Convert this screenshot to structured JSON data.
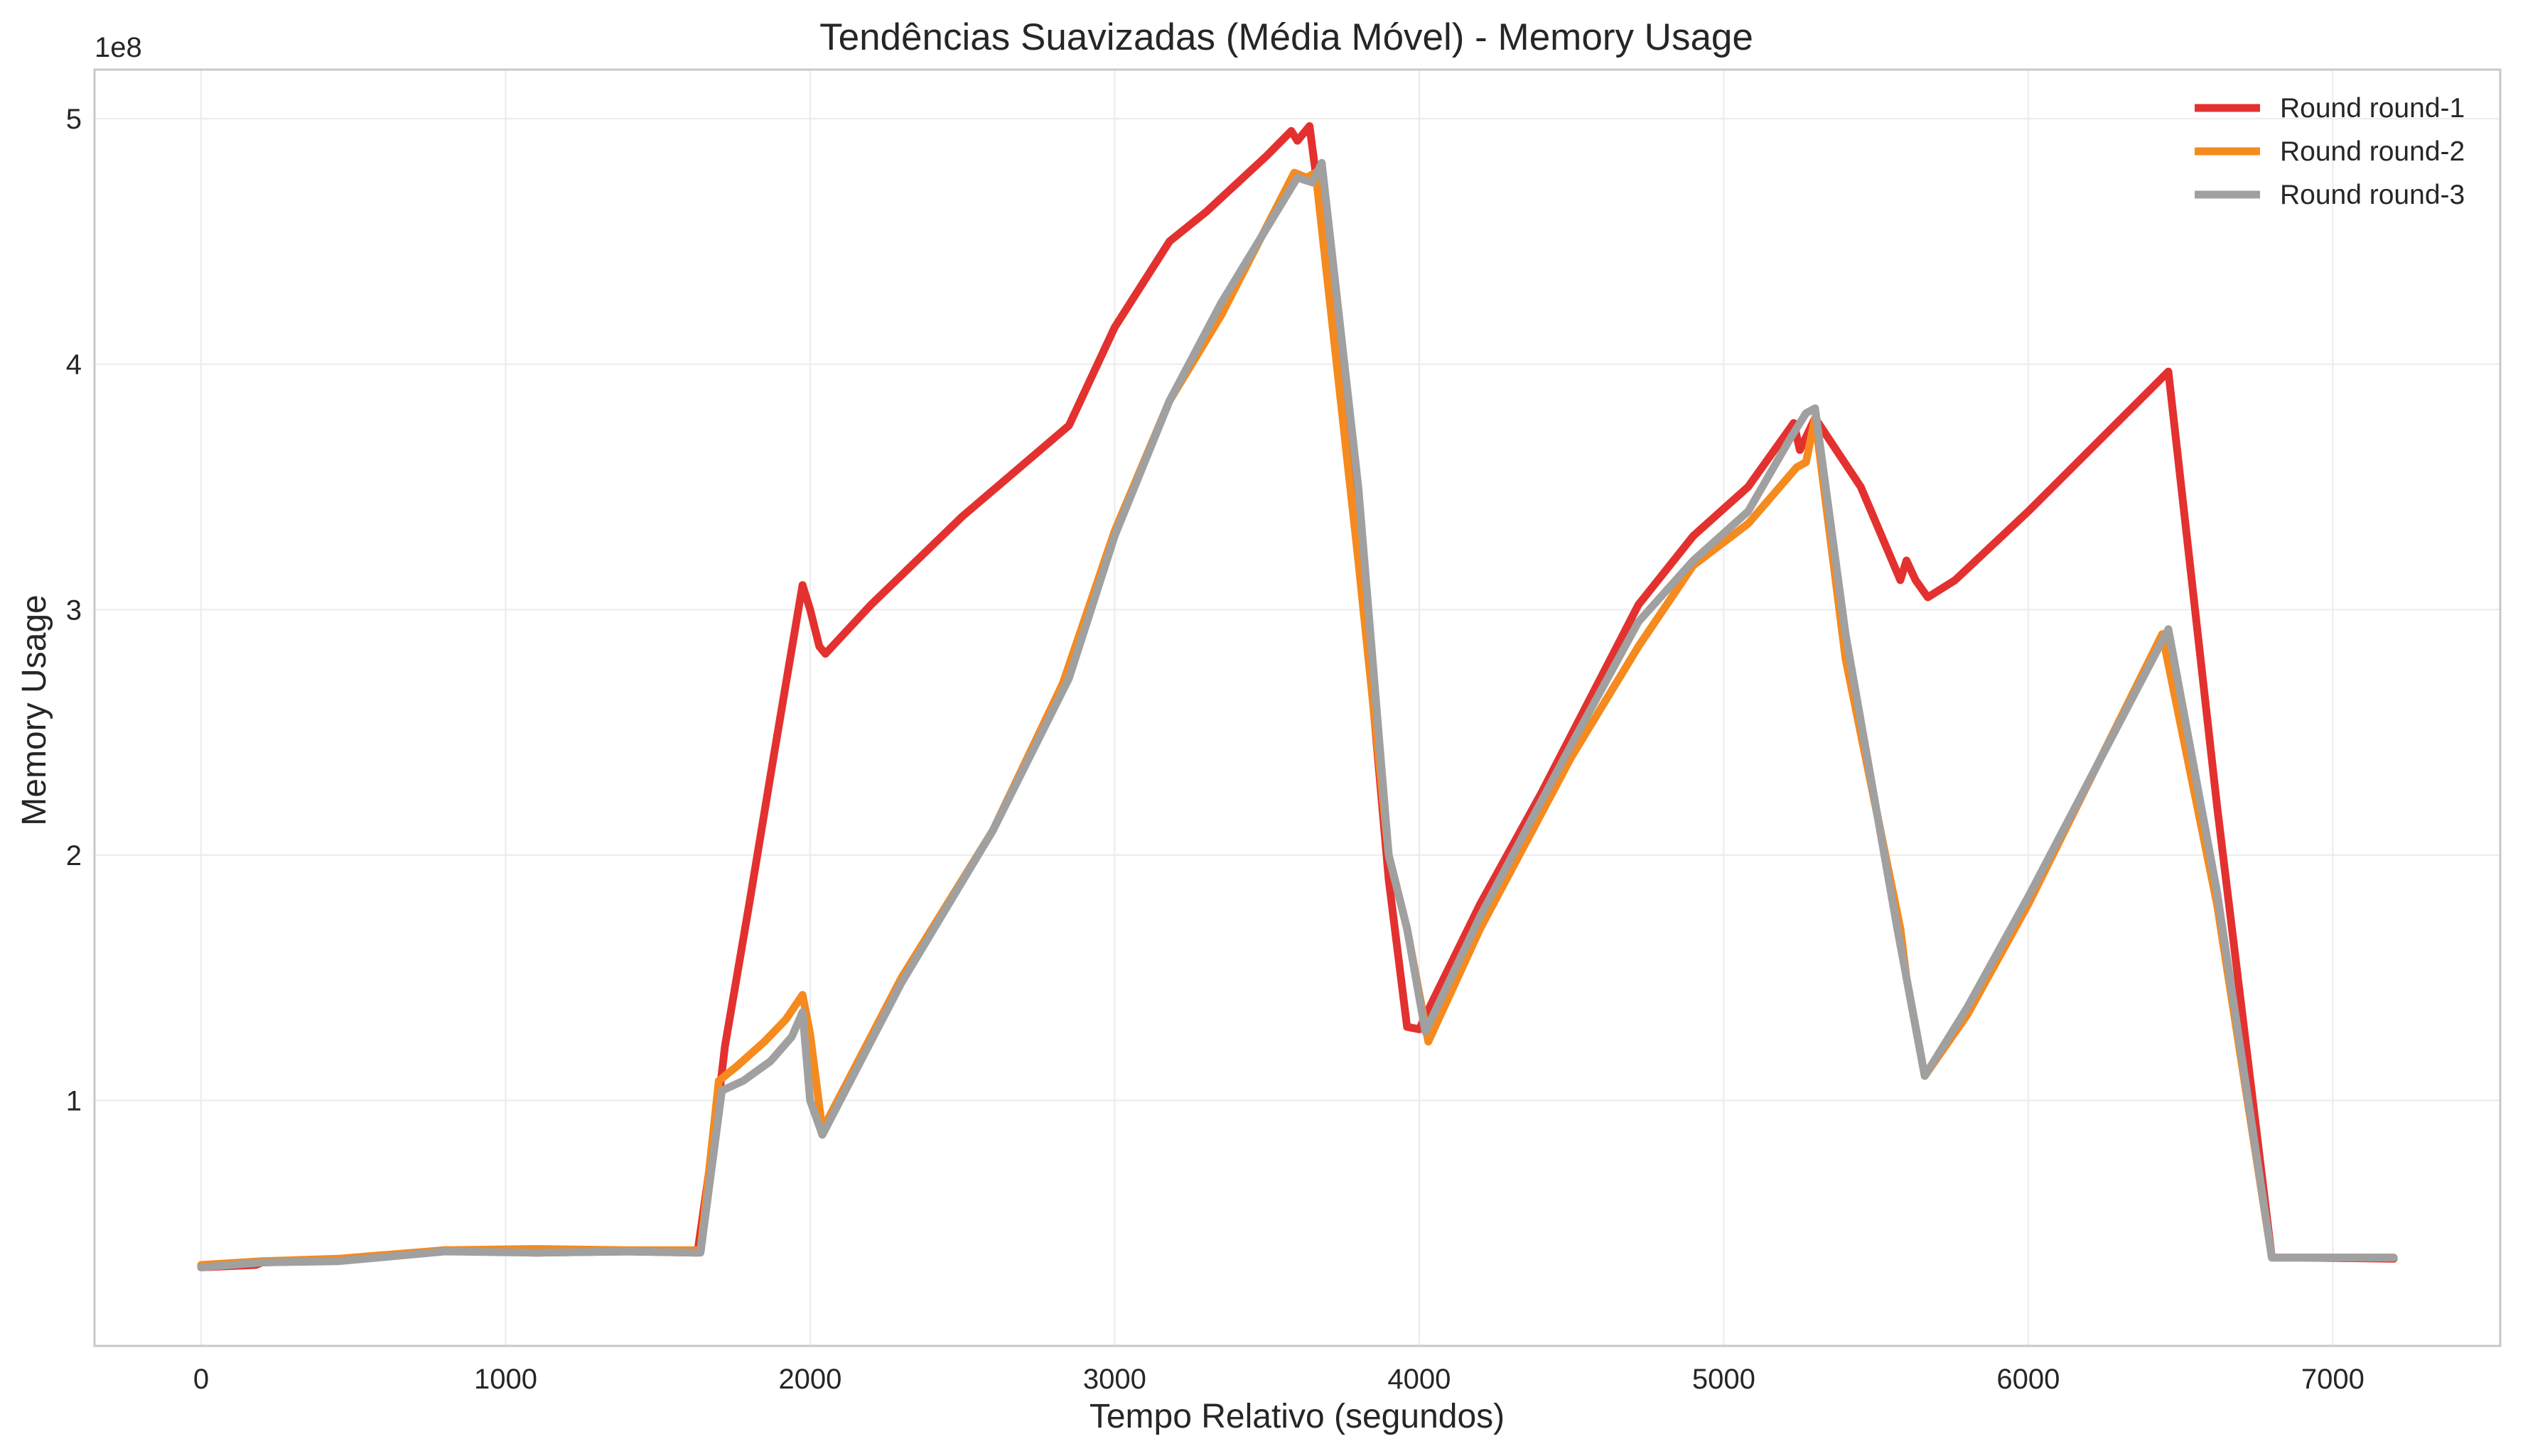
{
  "chart_data": {
    "type": "line",
    "title": "Tendências Suavizadas (Média Móvel) - Memory Usage",
    "xlabel": "Tempo Relativo (segundos)",
    "ylabel": "Memory Usage",
    "y_offset_label": "1e8",
    "xlim": [
      -350,
      7550
    ],
    "ylim": [
      0.0,
      5.2
    ],
    "x_ticks": [
      0,
      1000,
      2000,
      3000,
      4000,
      5000,
      6000,
      7000
    ],
    "x_tick_labels": [
      "0",
      "1000",
      "2000",
      "3000",
      "4000",
      "5000",
      "6000",
      "7000"
    ],
    "y_ticks": [
      1,
      2,
      3,
      4,
      5
    ],
    "y_tick_labels": [
      "1",
      "2",
      "3",
      "4",
      "5"
    ],
    "grid": true,
    "legend_position": "top-right",
    "series": [
      {
        "name": "Round round-1",
        "color": "#e3312f",
        "points": [
          [
            0,
            0.32
          ],
          [
            180,
            0.33
          ],
          [
            200,
            0.34
          ],
          [
            450,
            0.35
          ],
          [
            800,
            0.39
          ],
          [
            1100,
            0.38
          ],
          [
            1400,
            0.385
          ],
          [
            1630,
            0.38
          ],
          [
            1690,
            0.9
          ],
          [
            1720,
            1.22
          ],
          [
            1800,
            1.8
          ],
          [
            1880,
            2.4
          ],
          [
            1975,
            3.1
          ],
          [
            2000,
            3.0
          ],
          [
            2030,
            2.85
          ],
          [
            2050,
            2.82
          ],
          [
            2200,
            3.02
          ],
          [
            2500,
            3.38
          ],
          [
            2850,
            3.75
          ],
          [
            3000,
            4.15
          ],
          [
            3180,
            4.5
          ],
          [
            3300,
            4.62
          ],
          [
            3500,
            4.85
          ],
          [
            3580,
            4.95
          ],
          [
            3600,
            4.91
          ],
          [
            3640,
            4.97
          ],
          [
            3700,
            4.4
          ],
          [
            3800,
            3.3
          ],
          [
            3900,
            1.9
          ],
          [
            3960,
            1.3
          ],
          [
            4000,
            1.29
          ],
          [
            4050,
            1.42
          ],
          [
            4200,
            1.8
          ],
          [
            4400,
            2.25
          ],
          [
            4720,
            3.02
          ],
          [
            4900,
            3.3
          ],
          [
            5080,
            3.5
          ],
          [
            5230,
            3.76
          ],
          [
            5250,
            3.65
          ],
          [
            5300,
            3.78
          ],
          [
            5450,
            3.5
          ],
          [
            5580,
            3.12
          ],
          [
            5600,
            3.2
          ],
          [
            5630,
            3.12
          ],
          [
            5670,
            3.05
          ],
          [
            5760,
            3.12
          ],
          [
            6000,
            3.4
          ],
          [
            6460,
            3.97
          ],
          [
            6620,
            2.2
          ],
          [
            6800,
            0.36
          ],
          [
            6900,
            0.36
          ],
          [
            7200,
            0.355
          ]
        ]
      },
      {
        "name": "Round round-2",
        "color": "#f58a1f",
        "points": [
          [
            0,
            0.33
          ],
          [
            200,
            0.345
          ],
          [
            450,
            0.355
          ],
          [
            800,
            0.39
          ],
          [
            1100,
            0.395
          ],
          [
            1400,
            0.39
          ],
          [
            1640,
            0.39
          ],
          [
            1700,
            1.08
          ],
          [
            1760,
            1.14
          ],
          [
            1850,
            1.24
          ],
          [
            1920,
            1.33
          ],
          [
            1975,
            1.43
          ],
          [
            2000,
            1.27
          ],
          [
            2040,
            0.88
          ],
          [
            2300,
            1.5
          ],
          [
            2600,
            2.1
          ],
          [
            2830,
            2.7
          ],
          [
            3000,
            3.32
          ],
          [
            3180,
            3.85
          ],
          [
            3350,
            4.2
          ],
          [
            3590,
            4.78
          ],
          [
            3630,
            4.76
          ],
          [
            3660,
            4.78
          ],
          [
            3800,
            3.2
          ],
          [
            3900,
            2.0
          ],
          [
            3960,
            1.7
          ],
          [
            4030,
            1.24
          ],
          [
            4200,
            1.7
          ],
          [
            4500,
            2.4
          ],
          [
            4720,
            2.85
          ],
          [
            4900,
            3.18
          ],
          [
            5080,
            3.35
          ],
          [
            5240,
            3.58
          ],
          [
            5270,
            3.6
          ],
          [
            5300,
            3.78
          ],
          [
            5400,
            2.8
          ],
          [
            5580,
            1.7
          ],
          [
            5600,
            1.5
          ],
          [
            5660,
            1.1
          ],
          [
            5800,
            1.35
          ],
          [
            6000,
            1.8
          ],
          [
            6440,
            2.9
          ],
          [
            6620,
            1.8
          ],
          [
            6800,
            0.36
          ],
          [
            7000,
            0.36
          ],
          [
            7200,
            0.36
          ]
        ]
      },
      {
        "name": "Round round-3",
        "color": "#a0a0a0",
        "points": [
          [
            0,
            0.32
          ],
          [
            200,
            0.34
          ],
          [
            450,
            0.345
          ],
          [
            800,
            0.385
          ],
          [
            1100,
            0.38
          ],
          [
            1400,
            0.385
          ],
          [
            1640,
            0.38
          ],
          [
            1710,
            1.04
          ],
          [
            1780,
            1.08
          ],
          [
            1870,
            1.16
          ],
          [
            1940,
            1.26
          ],
          [
            1975,
            1.36
          ],
          [
            2000,
            1.0
          ],
          [
            2040,
            0.86
          ],
          [
            2300,
            1.48
          ],
          [
            2600,
            2.1
          ],
          [
            2850,
            2.72
          ],
          [
            3000,
            3.3
          ],
          [
            3180,
            3.85
          ],
          [
            3350,
            4.25
          ],
          [
            3600,
            4.76
          ],
          [
            3650,
            4.74
          ],
          [
            3680,
            4.82
          ],
          [
            3800,
            3.5
          ],
          [
            3900,
            2.0
          ],
          [
            3960,
            1.7
          ],
          [
            4020,
            1.28
          ],
          [
            4200,
            1.75
          ],
          [
            4500,
            2.45
          ],
          [
            4720,
            2.95
          ],
          [
            4900,
            3.2
          ],
          [
            5080,
            3.4
          ],
          [
            5220,
            3.7
          ],
          [
            5270,
            3.8
          ],
          [
            5300,
            3.82
          ],
          [
            5400,
            2.9
          ],
          [
            5570,
            1.7
          ],
          [
            5600,
            1.5
          ],
          [
            5660,
            1.1
          ],
          [
            5800,
            1.38
          ],
          [
            6000,
            1.83
          ],
          [
            6460,
            2.92
          ],
          [
            6620,
            1.85
          ],
          [
            6800,
            0.36
          ],
          [
            7000,
            0.36
          ],
          [
            7200,
            0.36
          ]
        ]
      }
    ]
  }
}
